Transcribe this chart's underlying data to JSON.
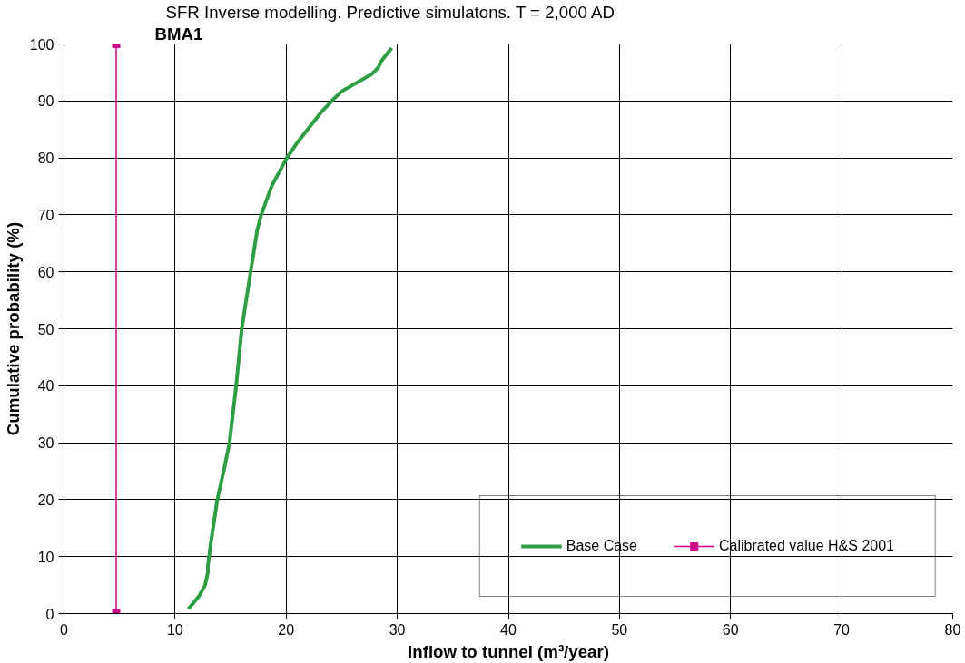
{
  "chart_data": {
    "type": "line",
    "title": "SFR Inverse modelling.  Predictive simulatons. T = 2,000 AD",
    "subtitle": "BMA1",
    "xlabel": "Inflow to tunnel (m³/year)",
    "ylabel": "Cumulative probability (%)",
    "xlim": [
      0,
      80
    ],
    "xticks": [
      0,
      10,
      20,
      30,
      40,
      50,
      60,
      70,
      80
    ],
    "ylim": [
      0,
      100
    ],
    "yticks": [
      0,
      10,
      20,
      30,
      40,
      50,
      60,
      70,
      80,
      90,
      100
    ],
    "grid": true,
    "legend": "bottom right",
    "series": [
      {
        "name": "Base Case",
        "color": "#2e9e44",
        "marker": "none",
        "x": [
          11.2,
          12.2,
          12.7,
          12.95,
          12.95,
          13.2,
          13.8,
          14.45,
          14.9,
          15.5,
          16.0,
          16.8,
          17.4,
          17.75,
          18.7,
          20.0,
          21.0,
          23.1,
          24.2,
          25.0,
          27.7,
          28.3,
          28.6,
          29.0,
          29.5
        ],
        "values": [
          0.8,
          3.2,
          5,
          7.2,
          8.3,
          12.2,
          20,
          25.7,
          30,
          40,
          50,
          60,
          67.4,
          70,
          75.1,
          79.8,
          82.7,
          87.9,
          90.2,
          91.7,
          94.7,
          95.9,
          97.1,
          98.1,
          99.3
        ]
      },
      {
        "name": "Calibrated value H&S 2001",
        "color": "#cc0088",
        "marker": "square",
        "x": [
          4.7,
          4.7
        ],
        "values": [
          0,
          100
        ]
      }
    ]
  }
}
